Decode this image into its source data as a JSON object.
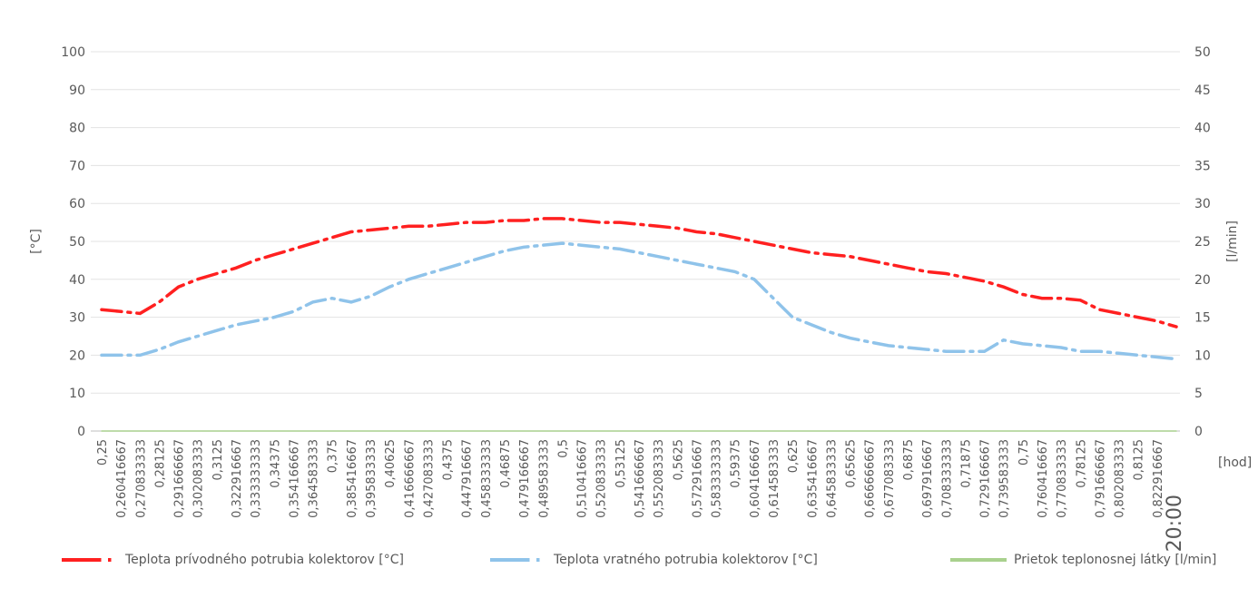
{
  "chart_data": {
    "type": "line",
    "xlabel": "[hod]",
    "ylabel": "[°C]",
    "y2label": "[l/min]",
    "ylim": [
      0,
      100
    ],
    "y2lim": [
      0,
      50
    ],
    "yticks": [
      "0",
      "10",
      "20",
      "30",
      "40",
      "50",
      "60",
      "70",
      "80",
      "90",
      "100"
    ],
    "y2ticks": [
      "0",
      "5",
      "10",
      "15",
      "20",
      "25",
      "30",
      "35",
      "40",
      "45",
      "50"
    ],
    "grid": true,
    "legend_position": "bottom",
    "categories": [
      "0,25",
      "0,260416667",
      "0,270833333",
      "0,28125",
      "0,291666667",
      "0,302083333",
      "0,3125",
      "0,322916667",
      "0,333333333",
      "0,34375",
      "0,354166667",
      "0,364583333",
      "0,375",
      "0,385416667",
      "0,395833333",
      "0,40625",
      "0,416666667",
      "0,427083333",
      "0,4375",
      "0,447916667",
      "0,458333333",
      "0,46875",
      "0,479166667",
      "0,489583333",
      "0,5",
      "0,510416667",
      "0,520833333",
      "0,53125",
      "0,541666667",
      "0,552083333",
      "0,5625",
      "0,572916667",
      "0,583333333",
      "0,59375",
      "0,604166667",
      "0,614583333",
      "0,625",
      "0,635416667",
      "0,645833333",
      "0,65625",
      "0,666666667",
      "0,677083333",
      "0,6875",
      "0,697916667",
      "0,708333333",
      "0,71875",
      "0,729166667",
      "0,739583333",
      "0,75",
      "0,760416667",
      "0,770833333",
      "0,78125",
      "0,791666667",
      "0,802083333",
      "0,8125",
      "0,822916667",
      "20:00"
    ],
    "series": [
      {
        "name": "Teplota prívodného potrubia  kolektorov [°C]",
        "axis": "left",
        "color": "#ff2020",
        "values": [
          32,
          31.5,
          31,
          34,
          38,
          40,
          41.5,
          43,
          45,
          46.5,
          48,
          49.5,
          51,
          52.5,
          53,
          53.5,
          54,
          54,
          54.5,
          55,
          55,
          55.5,
          55.5,
          56,
          56,
          55.5,
          55,
          55,
          54.5,
          54,
          53.5,
          52.5,
          52,
          51,
          50,
          49,
          48,
          47,
          46.5,
          46,
          45,
          44,
          43,
          42,
          41.5,
          40.5,
          39.5,
          38,
          36,
          35,
          35,
          34.5,
          32,
          31,
          30,
          29,
          27.5
        ]
      },
      {
        "name": "Teplota vratného potrubia  kolektorov [°C]",
        "axis": "left",
        "color": "#8fc3ea",
        "values": [
          20,
          20,
          20,
          21.5,
          23.5,
          25,
          26.5,
          28,
          29,
          30,
          31.5,
          34,
          35,
          34,
          35.5,
          38,
          40,
          41.5,
          43,
          44.5,
          46,
          47.5,
          48.5,
          49,
          49.5,
          49,
          48.5,
          48,
          47,
          46,
          45,
          44,
          43,
          42,
          40,
          35,
          30,
          28,
          26,
          24.5,
          23.5,
          22.5,
          22,
          21.5,
          21,
          21,
          21,
          24,
          23,
          22.5,
          22,
          21,
          21,
          20.5,
          20,
          19.5,
          19
        ]
      },
      {
        "name": "Prietok  teplonosnej látky [l/min]",
        "axis": "right",
        "color": "#a9d18e",
        "values": [
          0,
          0,
          0,
          0,
          0,
          0,
          0,
          0,
          0,
          0,
          0,
          0,
          0,
          0,
          0,
          0,
          0,
          0,
          0,
          0,
          0,
          0,
          0,
          0,
          0,
          0,
          0,
          0,
          0,
          0,
          0,
          0,
          0,
          0,
          0,
          0,
          0,
          0,
          0,
          0,
          0,
          0,
          0,
          0,
          0,
          0,
          0,
          0,
          0,
          0,
          0,
          0,
          0,
          0,
          0,
          0,
          0
        ]
      }
    ]
  }
}
